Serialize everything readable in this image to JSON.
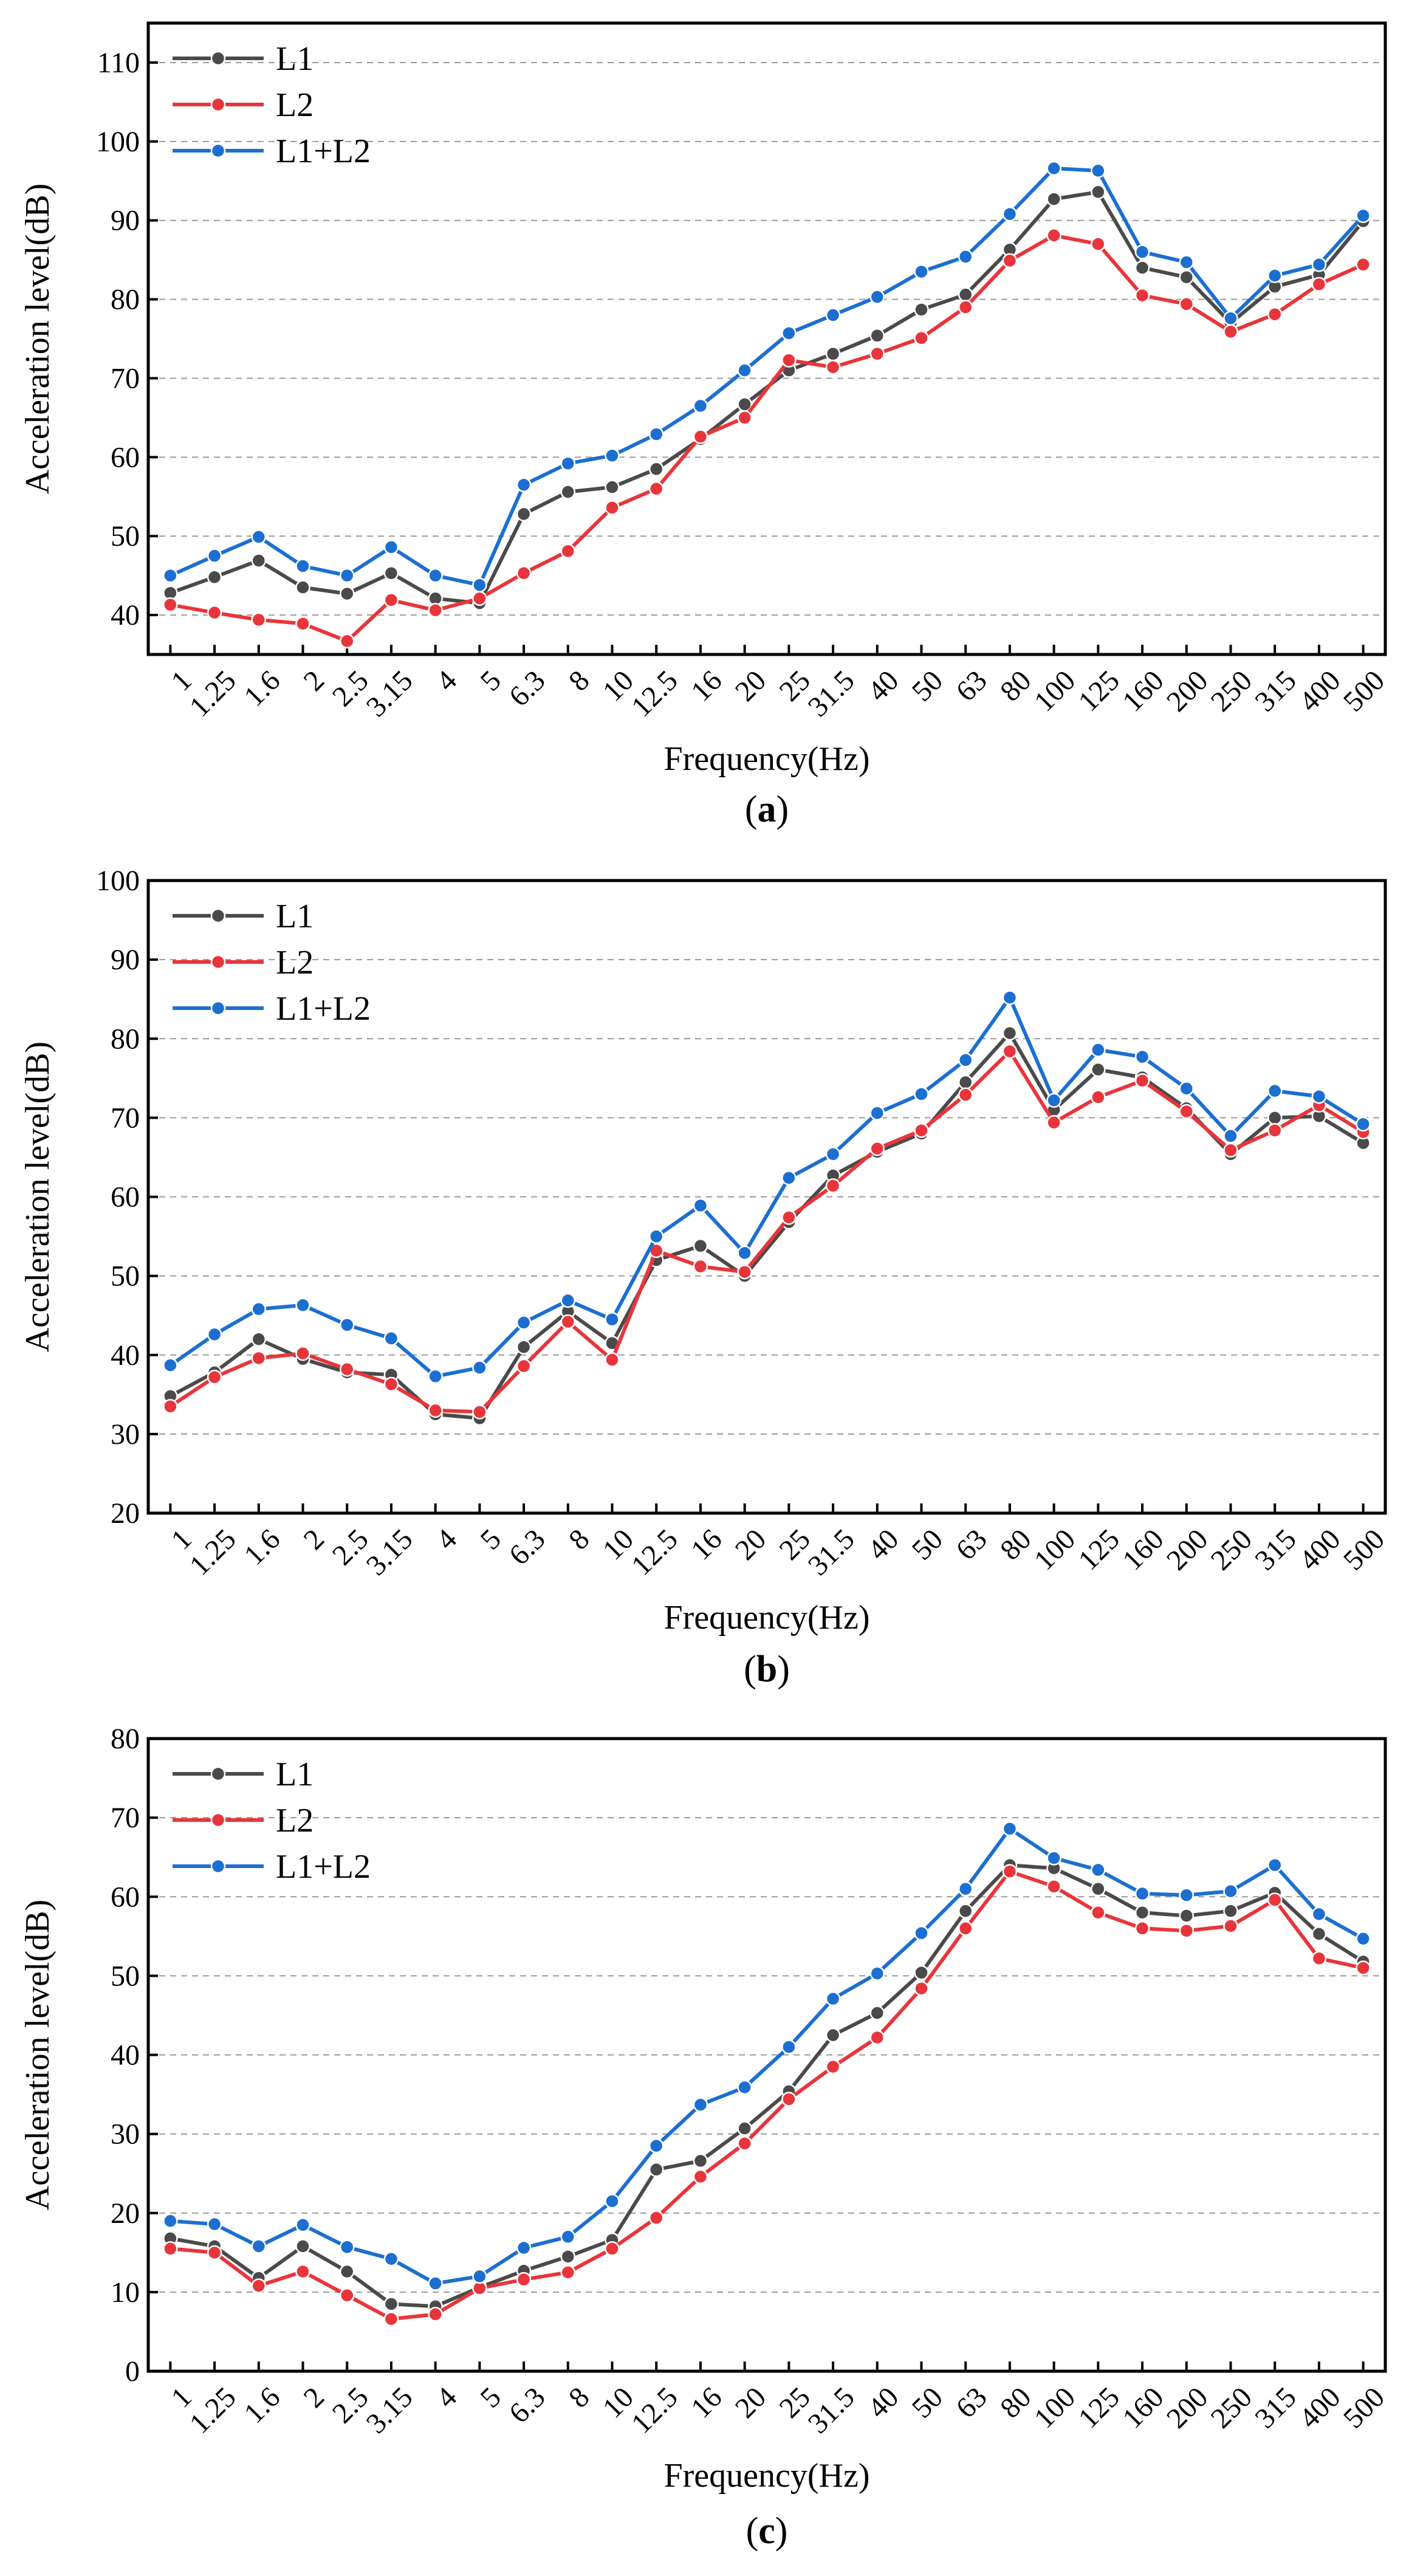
{
  "chart_data": [
    {
      "type": "line",
      "panel": "a",
      "caption_open": "(",
      "caption_letter": "a",
      "caption_close": ")",
      "xlabel": "Frequency(Hz)",
      "ylabel": "Acceleration level(dB)",
      "ylim": [
        35,
        115
      ],
      "yticks": [
        40,
        50,
        60,
        70,
        80,
        90,
        100,
        110
      ],
      "grid": true,
      "legend": "top-left",
      "categories": [
        "1",
        "1.25",
        "1.6",
        "2",
        "2.5",
        "3.15",
        "4",
        "5",
        "6.3",
        "8",
        "10",
        "12.5",
        "16",
        "20",
        "25",
        "31.5",
        "40",
        "50",
        "63",
        "80",
        "100",
        "125",
        "160",
        "200",
        "250",
        "315",
        "400",
        "500"
      ],
      "series": [
        {
          "name": "L1",
          "color": "#4a4a4a",
          "values": [
            42.8,
            44.8,
            46.9,
            43.5,
            42.7,
            45.3,
            42.1,
            41.5,
            52.8,
            55.6,
            56.2,
            58.5,
            62.3,
            66.7,
            71.0,
            73.1,
            75.4,
            78.7,
            80.6,
            86.3,
            92.7,
            93.6,
            84.0,
            82.8,
            77.0,
            81.6,
            83.1,
            89.9
          ]
        },
        {
          "name": "L2",
          "color": "#e8353b",
          "values": [
            41.3,
            40.3,
            39.4,
            38.9,
            36.7,
            41.9,
            40.6,
            42.1,
            45.3,
            48.1,
            53.6,
            56.0,
            62.6,
            65.0,
            72.3,
            71.4,
            73.1,
            75.1,
            79.0,
            84.9,
            88.1,
            87.0,
            80.5,
            79.4,
            75.9,
            78.1,
            81.9,
            84.4
          ]
        },
        {
          "name": "L1+L2",
          "color": "#1c6fd0",
          "values": [
            45.0,
            47.5,
            49.9,
            46.2,
            45.0,
            48.6,
            45.0,
            43.8,
            56.5,
            59.2,
            60.2,
            62.9,
            66.5,
            71.0,
            75.7,
            78.0,
            80.3,
            83.5,
            85.4,
            90.8,
            96.6,
            96.3,
            86.0,
            84.7,
            77.6,
            83.0,
            84.4,
            90.6
          ]
        }
      ]
    },
    {
      "type": "line",
      "panel": "b",
      "caption_open": "(",
      "caption_letter": "b",
      "caption_close": ")",
      "xlabel": "Frequency(Hz)",
      "ylabel": "Acceleration level(dB)",
      "ylim": [
        20,
        100
      ],
      "yticks": [
        20,
        30,
        40,
        50,
        60,
        70,
        80,
        90,
        100
      ],
      "grid": true,
      "legend": "top-left",
      "categories": [
        "1",
        "1.25",
        "1.6",
        "2",
        "2.5",
        "3.15",
        "4",
        "5",
        "6.3",
        "8",
        "10",
        "12.5",
        "16",
        "20",
        "25",
        "31.5",
        "40",
        "50",
        "63",
        "80",
        "100",
        "125",
        "160",
        "200",
        "250",
        "315",
        "400",
        "500"
      ],
      "series": [
        {
          "name": "L1",
          "color": "#4a4a4a",
          "values": [
            34.8,
            37.8,
            42.0,
            39.5,
            37.8,
            37.5,
            32.5,
            32.0,
            41.0,
            45.5,
            41.5,
            52.0,
            53.8,
            50.0,
            56.8,
            62.7,
            65.7,
            68.0,
            74.5,
            80.7,
            71.0,
            76.1,
            75.1,
            71.2,
            65.4,
            70.0,
            70.2,
            66.8
          ]
        },
        {
          "name": "L2",
          "color": "#e8353b",
          "values": [
            33.5,
            37.2,
            39.6,
            40.2,
            38.2,
            36.3,
            33.0,
            32.8,
            38.6,
            44.2,
            39.4,
            53.2,
            51.2,
            50.5,
            57.4,
            61.4,
            66.1,
            68.4,
            72.9,
            78.4,
            69.4,
            72.6,
            74.7,
            70.8,
            65.9,
            68.4,
            71.6,
            68.2
          ]
        },
        {
          "name": "L1+L2",
          "color": "#1c6fd0",
          "values": [
            38.7,
            42.6,
            45.8,
            46.3,
            43.8,
            42.1,
            37.3,
            38.4,
            44.1,
            46.9,
            44.5,
            55.0,
            58.9,
            52.9,
            62.4,
            65.4,
            70.6,
            73.0,
            77.3,
            85.2,
            72.2,
            78.6,
            77.7,
            73.7,
            67.7,
            73.4,
            72.7,
            69.2
          ]
        }
      ]
    },
    {
      "type": "line",
      "panel": "c",
      "caption_open": "(",
      "caption_letter": "c",
      "caption_close": ")",
      "xlabel": "Frequency(Hz)",
      "ylabel": "Acceleration level(dB)",
      "ylim": [
        0,
        80
      ],
      "yticks": [
        0,
        10,
        20,
        30,
        40,
        50,
        60,
        70,
        80
      ],
      "grid": true,
      "legend": "top-left",
      "categories": [
        "1",
        "1.25",
        "1.6",
        "2",
        "2.5",
        "3.15",
        "4",
        "5",
        "6.3",
        "8",
        "10",
        "12.5",
        "16",
        "20",
        "25",
        "31.5",
        "40",
        "50",
        "63",
        "80",
        "100",
        "125",
        "160",
        "200",
        "250",
        "315",
        "400",
        "500"
      ],
      "series": [
        {
          "name": "L1",
          "color": "#4a4a4a",
          "values": [
            16.8,
            15.8,
            11.8,
            15.8,
            12.6,
            8.5,
            8.2,
            10.6,
            12.7,
            14.5,
            16.6,
            25.5,
            26.6,
            30.7,
            35.4,
            42.5,
            45.3,
            50.4,
            58.2,
            64.0,
            63.6,
            61.0,
            58.0,
            57.6,
            58.2,
            60.5,
            55.3,
            51.8
          ]
        },
        {
          "name": "L2",
          "color": "#e8353b",
          "values": [
            15.5,
            15.0,
            10.8,
            12.6,
            9.6,
            6.6,
            7.2,
            10.5,
            11.6,
            12.5,
            15.5,
            19.4,
            24.6,
            28.8,
            34.4,
            38.5,
            42.2,
            48.4,
            56.0,
            63.2,
            61.3,
            58.0,
            56.0,
            55.7,
            56.3,
            59.6,
            52.2,
            51.0
          ]
        },
        {
          "name": "L1+L2",
          "color": "#1c6fd0",
          "values": [
            19.0,
            18.6,
            15.8,
            18.5,
            15.7,
            14.2,
            11.1,
            12.0,
            15.6,
            17.0,
            21.5,
            28.5,
            33.7,
            35.9,
            41.0,
            47.1,
            50.3,
            55.4,
            61.0,
            68.6,
            64.9,
            63.4,
            60.4,
            60.2,
            60.7,
            64.0,
            57.8,
            54.7
          ]
        }
      ]
    }
  ]
}
